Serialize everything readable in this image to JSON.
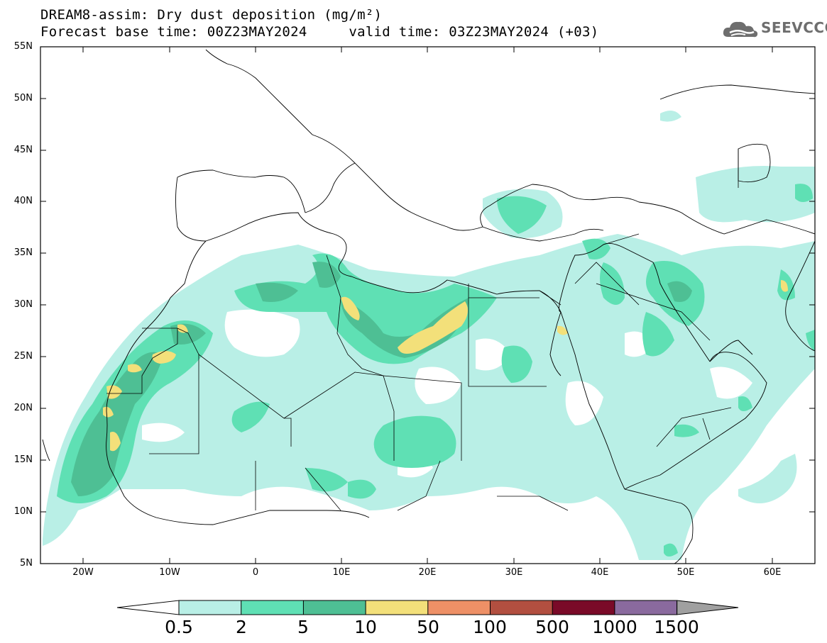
{
  "title": {
    "line1": "DREAM8-assim: Dry dust deposition (mg/m²)",
    "line2": "Forecast base time: 00Z23MAY2024     valid time: 03Z23MAY2024 (+03)"
  },
  "logo": {
    "text": "SEEVCCC",
    "icon": "cloud-icon"
  },
  "map": {
    "lat_labels": [
      "55N",
      "50N",
      "45N",
      "40N",
      "35N",
      "30N",
      "25N",
      "20N",
      "15N",
      "10N",
      "5N"
    ],
    "lon_labels": [
      "20W",
      "10W",
      "0",
      "10E",
      "20E",
      "30E",
      "40E",
      "50E",
      "60E"
    ],
    "lat_range": [
      5,
      55
    ],
    "lon_range": [
      -25,
      65
    ]
  },
  "colorbar": {
    "labels": [
      "0.5",
      "2",
      "5",
      "10",
      "50",
      "100",
      "500",
      "1000",
      "1500"
    ],
    "colors": [
      "#b9efe6",
      "#5fe0b4",
      "#4ebf94",
      "#f3e07a",
      "#ee9066",
      "#b24f40",
      "#7a0a28",
      "#8a6a9e",
      "#a0a0a0"
    ]
  }
}
